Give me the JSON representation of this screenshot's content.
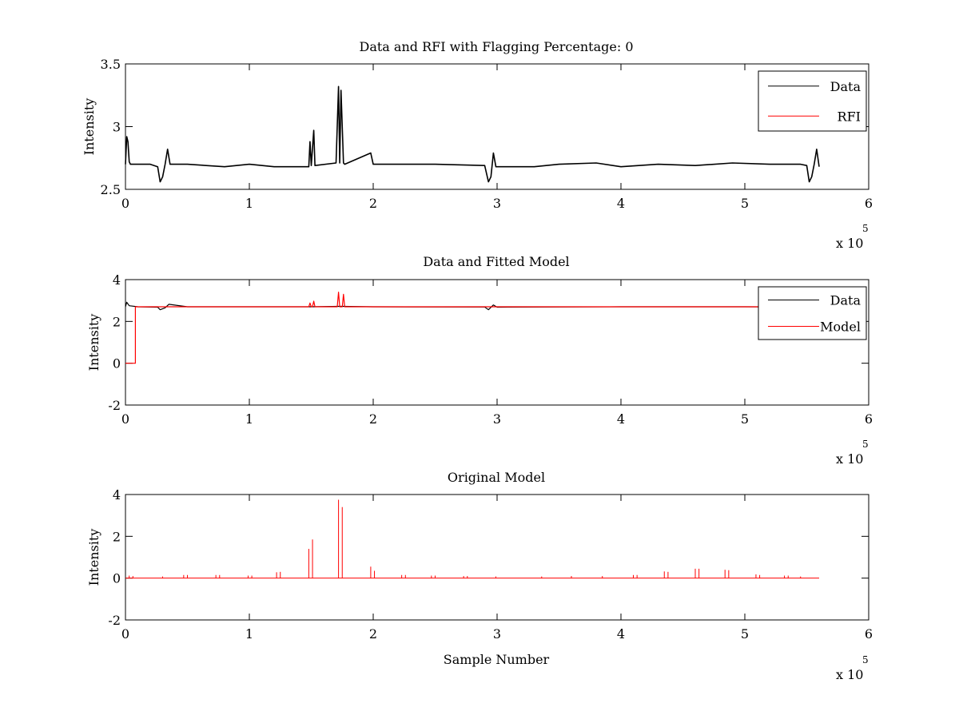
{
  "chart_data": [
    {
      "type": "line",
      "title": "Data and RFI with Flagging Percentage: 0",
      "xlabel": "",
      "ylabel": "Intensity",
      "xlim": [
        0,
        6
      ],
      "ylim": [
        2.5,
        3.5
      ],
      "xticks": [
        "0",
        "1",
        "2",
        "3",
        "4",
        "5",
        "6"
      ],
      "yticks": [
        "2.5",
        "3",
        "3.5"
      ],
      "xticks_values": [
        0,
        1,
        2,
        3,
        4,
        5,
        6
      ],
      "yticks_values": [
        2.5,
        3,
        3.5
      ],
      "x_multiplier": "x 10",
      "x_multiplier_exp": "5",
      "legend": {
        "position": "top-right",
        "entries": [
          "Data",
          "RFI"
        ]
      },
      "series": [
        {
          "name": "Data",
          "color": "#000000",
          "x": [
            0,
            0.01,
            0.02,
            0.03,
            0.04,
            0.1,
            0.2,
            0.26,
            0.28,
            0.3,
            0.32,
            0.34,
            0.36,
            0.5,
            0.8,
            1.0,
            1.2,
            1.48,
            1.49,
            1.5,
            1.52,
            1.53,
            1.7,
            1.72,
            1.73,
            1.74,
            1.76,
            1.77,
            1.98,
            2.0,
            2.5,
            2.9,
            2.93,
            2.95,
            2.97,
            2.99,
            3.3,
            3.5,
            3.8,
            4.0,
            4.3,
            4.6,
            4.9,
            5.2,
            5.45,
            5.5,
            5.52,
            5.54,
            5.56,
            5.58,
            5.6
          ],
          "y": [
            2.7,
            2.92,
            2.88,
            2.72,
            2.7,
            2.7,
            2.7,
            2.68,
            2.56,
            2.6,
            2.7,
            2.82,
            2.7,
            2.7,
            2.68,
            2.7,
            2.68,
            2.68,
            2.88,
            2.69,
            2.97,
            2.69,
            2.71,
            3.32,
            2.71,
            3.29,
            2.71,
            2.7,
            2.79,
            2.7,
            2.7,
            2.69,
            2.56,
            2.6,
            2.79,
            2.68,
            2.68,
            2.7,
            2.71,
            2.68,
            2.7,
            2.69,
            2.71,
            2.7,
            2.7,
            2.69,
            2.56,
            2.6,
            2.7,
            2.82,
            2.68
          ]
        },
        {
          "name": "RFI",
          "color": "#ff0000",
          "x": [],
          "y": []
        }
      ]
    },
    {
      "type": "line",
      "title": "Data and Fitted Model",
      "xlabel": "",
      "ylabel": "Intensity",
      "xlim": [
        0,
        6
      ],
      "ylim": [
        -2,
        4
      ],
      "xticks": [
        "0",
        "1",
        "2",
        "3",
        "4",
        "5",
        "6"
      ],
      "yticks": [
        "-2",
        "0",
        "2",
        "4"
      ],
      "xticks_values": [
        0,
        1,
        2,
        3,
        4,
        5,
        6
      ],
      "yticks_values": [
        -2,
        0,
        2,
        4
      ],
      "x_multiplier": "x 10",
      "x_multiplier_exp": "5",
      "legend": {
        "position": "top-right",
        "entries": [
          "Data",
          "Model"
        ]
      },
      "series": [
        {
          "name": "Data",
          "color": "#000000",
          "x": [
            0,
            0.01,
            0.03,
            0.1,
            0.26,
            0.28,
            0.32,
            0.35,
            0.5,
            1.0,
            1.5,
            1.72,
            1.75,
            2.0,
            2.9,
            2.93,
            2.97,
            3.0,
            4.0,
            5.0,
            5.6
          ],
          "y": [
            2.7,
            2.92,
            2.75,
            2.7,
            2.68,
            2.56,
            2.65,
            2.82,
            2.7,
            2.7,
            2.7,
            2.72,
            2.72,
            2.7,
            2.69,
            2.56,
            2.79,
            2.68,
            2.7,
            2.7,
            2.68
          ]
        },
        {
          "name": "Model",
          "color": "#ff0000",
          "x": [
            0,
            0.08,
            0.08,
            0.1,
            1.0,
            1.48,
            1.49,
            1.5,
            1.51,
            1.52,
            1.53,
            1.71,
            1.72,
            1.73,
            1.75,
            1.76,
            1.77,
            2.0,
            3.0,
            4.0,
            5.0,
            5.6
          ],
          "y": [
            0.0,
            0.0,
            2.7,
            2.7,
            2.7,
            2.7,
            2.88,
            2.7,
            2.7,
            2.97,
            2.7,
            2.7,
            3.4,
            2.7,
            2.7,
            3.3,
            2.7,
            2.7,
            2.7,
            2.7,
            2.7,
            2.7
          ]
        }
      ]
    },
    {
      "type": "line",
      "title": "Original Model",
      "xlabel": "Sample Number",
      "ylabel": "Intensity",
      "xlim": [
        0,
        6
      ],
      "ylim": [
        -2,
        4
      ],
      "xticks": [
        "0",
        "1",
        "2",
        "3",
        "4",
        "5",
        "6"
      ],
      "yticks": [
        "-2",
        "0",
        "2",
        "4"
      ],
      "xticks_values": [
        0,
        1,
        2,
        3,
        4,
        5,
        6
      ],
      "yticks_values": [
        -2,
        0,
        2,
        4
      ],
      "x_multiplier": "x 10",
      "x_multiplier_exp": "5",
      "series": [
        {
          "color": "#ff0000",
          "baseline": 0,
          "x_end": 5.6,
          "spikes": [
            {
              "x": 0.03,
              "y": 0.12
            },
            {
              "x": 0.06,
              "y": 0.1
            },
            {
              "x": 0.3,
              "y": 0.08
            },
            {
              "x": 0.47,
              "y": 0.15
            },
            {
              "x": 0.5,
              "y": 0.15
            },
            {
              "x": 0.73,
              "y": 0.15
            },
            {
              "x": 0.76,
              "y": 0.15
            },
            {
              "x": 0.99,
              "y": 0.12
            },
            {
              "x": 1.02,
              "y": 0.12
            },
            {
              "x": 1.22,
              "y": 0.28
            },
            {
              "x": 1.25,
              "y": 0.3
            },
            {
              "x": 1.48,
              "y": 1.4
            },
            {
              "x": 1.51,
              "y": 1.85
            },
            {
              "x": 1.72,
              "y": 3.75
            },
            {
              "x": 1.75,
              "y": 3.4
            },
            {
              "x": 1.98,
              "y": 0.55
            },
            {
              "x": 2.01,
              "y": 0.35
            },
            {
              "x": 2.23,
              "y": 0.15
            },
            {
              "x": 2.26,
              "y": 0.15
            },
            {
              "x": 2.47,
              "y": 0.12
            },
            {
              "x": 2.5,
              "y": 0.12
            },
            {
              "x": 2.73,
              "y": 0.1
            },
            {
              "x": 2.76,
              "y": 0.1
            },
            {
              "x": 2.99,
              "y": 0.08
            },
            {
              "x": 3.36,
              "y": 0.08
            },
            {
              "x": 3.6,
              "y": 0.1
            },
            {
              "x": 3.85,
              "y": 0.1
            },
            {
              "x": 4.1,
              "y": 0.15
            },
            {
              "x": 4.13,
              "y": 0.15
            },
            {
              "x": 4.35,
              "y": 0.32
            },
            {
              "x": 4.38,
              "y": 0.3
            },
            {
              "x": 4.6,
              "y": 0.45
            },
            {
              "x": 4.63,
              "y": 0.45
            },
            {
              "x": 4.84,
              "y": 0.4
            },
            {
              "x": 4.87,
              "y": 0.38
            },
            {
              "x": 5.09,
              "y": 0.18
            },
            {
              "x": 5.12,
              "y": 0.15
            },
            {
              "x": 5.32,
              "y": 0.12
            },
            {
              "x": 5.35,
              "y": 0.12
            },
            {
              "x": 5.45,
              "y": 0.08
            }
          ]
        }
      ]
    }
  ]
}
